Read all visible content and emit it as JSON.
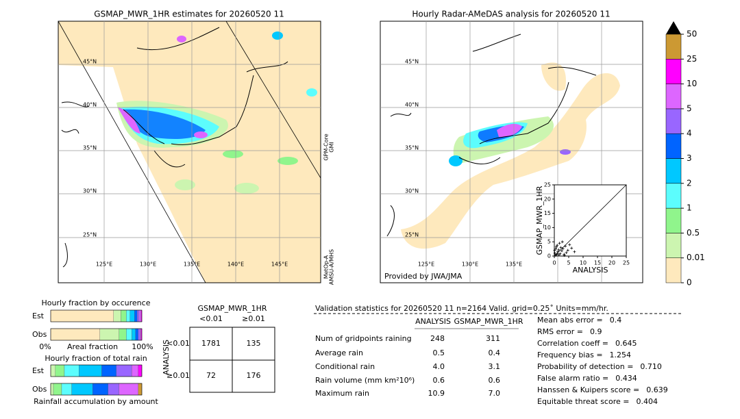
{
  "left_map": {
    "title": "GSMAP_MWR_1HR estimates for 20260520 11",
    "lat_labels": [
      "45°N",
      "40°N",
      "35°N",
      "30°N",
      "25°N"
    ],
    "lon_labels": [
      "125°E",
      "130°E",
      "135°E",
      "140°E",
      "145°E"
    ],
    "side_labels": [
      [
        "GPM-Core",
        "GMI"
      ],
      [
        "MetOp-A",
        "AMSU-A/MHS"
      ]
    ]
  },
  "right_map": {
    "title": "Hourly Radar-AMeDAS analysis for 20260520 11",
    "lat_labels": [
      "45°N",
      "40°N",
      "35°N",
      "30°N",
      "25°N"
    ],
    "lon_labels": [
      "125°E",
      "130°E",
      "135°E"
    ],
    "credit": "Provided by JWA/JMA"
  },
  "scatter": {
    "type": "scatter",
    "xlabel": "ANALYSIS",
    "ylabel": "GSMAP_MWR_1HR",
    "xlim": [
      0,
      25
    ],
    "ylim": [
      0,
      25
    ],
    "xticks": [
      0,
      5,
      10,
      15,
      20,
      25
    ],
    "yticks": [
      0,
      5,
      10,
      15,
      20,
      25
    ],
    "x": [
      0.2,
      0.5,
      0.8,
      1.0,
      1.2,
      1.5,
      1.8,
      2.0,
      2.3,
      2.6,
      3.0,
      3.4,
      3.8,
      4.2,
      4.7,
      5.3,
      6.0,
      7.0,
      0.4,
      1.1,
      2.8,
      3.5,
      0.1,
      0.7,
      1.6
    ],
    "y": [
      1.0,
      2.5,
      0.5,
      3.8,
      1.5,
      2.2,
      4.5,
      0.8,
      3.0,
      1.8,
      2.6,
      0.6,
      3.5,
      1.2,
      2.0,
      4.0,
      2.8,
      1.5,
      0.3,
      0.9,
      5.0,
      0.2,
      2.0,
      3.2,
      0.4
    ],
    "color": "#000000"
  },
  "colorbar": {
    "ticks": [
      0,
      0.01,
      0.5,
      1,
      2,
      3,
      4,
      5,
      10,
      25,
      50
    ],
    "colors": [
      "#fee9bd",
      "#ccf5b0",
      "#90f58c",
      "#5cfdfd",
      "#00c8ff",
      "#0064ff",
      "#9966ff",
      "#dd66ff",
      "#ff00ff",
      "#cc9933"
    ]
  },
  "occurrence": {
    "title": "Hourly fraction by occurence",
    "rows": [
      "Est",
      "Obs"
    ],
    "axis_labels": [
      "0%",
      "Areal fraction",
      "100%"
    ],
    "segments": [
      [
        69,
        8,
        6,
        4,
        5,
        3,
        2,
        2,
        1,
        0
      ],
      [
        54,
        21,
        8,
        6,
        4,
        3,
        2,
        1,
        1,
        0
      ]
    ]
  },
  "total_rain": {
    "title": "Hourly fraction of total rain",
    "rows": [
      "Est",
      "Obs"
    ],
    "footer": "Rainfall accumulation by amount",
    "segments": [
      [
        0,
        5,
        10,
        16,
        25,
        16,
        17,
        7,
        4,
        0
      ],
      [
        0,
        3,
        9,
        11,
        23,
        17,
        12,
        21,
        0,
        4
      ]
    ]
  },
  "contingency": {
    "title": "GSMAP_MWR_1HR",
    "col_headers": [
      "<0.01",
      "≥0.01"
    ],
    "row_axis": "ANALYSIS",
    "row_headers": [
      "<0.01",
      "≥0.01"
    ],
    "cells": [
      [
        "1781",
        "135"
      ],
      [
        "72",
        "176"
      ]
    ]
  },
  "validation": {
    "header": "Validation statistics for 20260520 11  n=2164 Valid. grid=0.25˚ Units=mm/hr.",
    "columns": [
      "ANALYSIS",
      "GSMAP_MWR_1HR"
    ],
    "rows": [
      {
        "label": "Num of gridpoints raining",
        "values": [
          "248",
          "311"
        ]
      },
      {
        "label": "Average rain",
        "values": [
          "0.5",
          "0.4"
        ]
      },
      {
        "label": "Conditional rain",
        "values": [
          "4.0",
          "3.1"
        ]
      },
      {
        "label": "Rain volume (mm km²10⁶)",
        "values": [
          "0.6",
          "0.6"
        ]
      },
      {
        "label": "Maximum rain",
        "values": [
          "10.9",
          "7.0"
        ]
      }
    ]
  },
  "scores": [
    {
      "label": "Mean abs error =",
      "value": "0.4"
    },
    {
      "label": "RMS error =",
      "value": "0.9"
    },
    {
      "label": "Correlation coeff =",
      "value": "0.645"
    },
    {
      "label": "Frequency bias =",
      "value": "1.254"
    },
    {
      "label": "Probability of detection =",
      "value": "0.710"
    },
    {
      "label": "False alarm ratio =",
      "value": "0.434"
    },
    {
      "label": "Hanssen & Kuipers score =",
      "value": "0.639"
    },
    {
      "label": "Equitable threat score =",
      "value": "0.404"
    }
  ]
}
